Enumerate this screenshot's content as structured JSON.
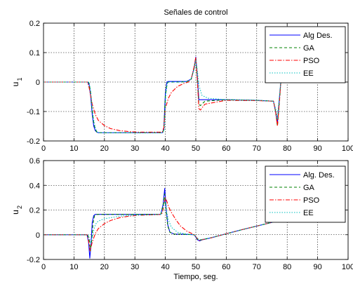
{
  "chart_data": [
    {
      "type": "line",
      "title": "Señales de control",
      "xlabel": "",
      "ylabel_main": "u",
      "ylabel_sub": "1",
      "xlim": [
        0,
        100
      ],
      "ylim": [
        -0.2,
        0.2
      ],
      "xticks": [
        "0",
        "10",
        "20",
        "30",
        "40",
        "50",
        "60",
        "70",
        "80",
        "90",
        "100"
      ],
      "yticks": [
        {
          "v": -0.2,
          "label": "-0.2"
        },
        {
          "v": -0.1,
          "label": "-0.1"
        },
        {
          "v": 0,
          "label": "0"
        },
        {
          "v": 0.1,
          "label": "0.1"
        },
        {
          "v": 0.2,
          "label": "0.2"
        }
      ],
      "grid": true,
      "legend_position": "top-right",
      "series": [
        {
          "name": "Alg Des.",
          "color": "#0000ff",
          "dash": "",
          "x": [
            0,
            14.5,
            15,
            15.5,
            16,
            16.5,
            17,
            17.5,
            18,
            20,
            30,
            39,
            39.5,
            40,
            40.5,
            41,
            42,
            44,
            47,
            48.5,
            49.5,
            50,
            50.5,
            51,
            52,
            54,
            60,
            70,
            75.5,
            76.2,
            76.8,
            77.5,
            78
          ],
          "y": [
            0,
            0,
            -0.01,
            -0.05,
            -0.11,
            -0.15,
            -0.165,
            -0.17,
            -0.172,
            -0.172,
            -0.172,
            -0.172,
            -0.16,
            -0.04,
            0,
            0.002,
            0.002,
            0.002,
            0.002,
            0.01,
            0.05,
            0.085,
            0.02,
            -0.06,
            -0.06,
            -0.06,
            -0.06,
            -0.062,
            -0.065,
            -0.1,
            -0.14,
            -0.05,
            0.012
          ]
        },
        {
          "name": "GA",
          "color": "#008000",
          "dash": "4,3",
          "x": [
            0,
            14.7,
            15,
            15.5,
            16,
            16.5,
            17,
            17.5,
            18,
            20,
            30,
            39,
            39.5,
            40,
            40.5,
            41,
            42,
            44,
            47,
            48.5,
            49.5,
            50,
            50.5,
            51,
            51.5,
            53,
            60,
            70,
            75.5,
            76.2,
            76.8,
            77.5,
            78
          ],
          "y": [
            0,
            0,
            -0.005,
            -0.04,
            -0.1,
            -0.14,
            -0.16,
            -0.17,
            -0.172,
            -0.172,
            -0.172,
            -0.172,
            -0.162,
            -0.05,
            -0.005,
            0,
            0,
            0,
            0.001,
            0.01,
            0.05,
            0.08,
            0.01,
            -0.075,
            -0.08,
            -0.065,
            -0.06,
            -0.062,
            -0.065,
            -0.1,
            -0.15,
            -0.06,
            0.01
          ]
        },
        {
          "name": "PSO",
          "color": "#ff0000",
          "dash": "6,2,1.5,2",
          "x": [
            0,
            14.5,
            15,
            16,
            17,
            18,
            20,
            22,
            25,
            28,
            31,
            34,
            37,
            39,
            39.5,
            40,
            41,
            42,
            44,
            46,
            47.5,
            48.5,
            49.5,
            50,
            50.5,
            51,
            51.5,
            53,
            60,
            70,
            75.5,
            76.2,
            76.8,
            77.5,
            78
          ],
          "y": [
            0,
            0,
            -0.02,
            -0.075,
            -0.11,
            -0.13,
            -0.148,
            -0.158,
            -0.165,
            -0.168,
            -0.17,
            -0.17,
            -0.17,
            -0.17,
            -0.155,
            -0.09,
            -0.055,
            -0.035,
            -0.015,
            -0.005,
            0,
            0.01,
            0.055,
            0.085,
            0.01,
            -0.09,
            -0.095,
            -0.075,
            -0.062,
            -0.063,
            -0.065,
            -0.1,
            -0.15,
            -0.06,
            0.01
          ]
        },
        {
          "name": "EE",
          "color": "#00bfbf",
          "dash": "1.5,2",
          "x": [
            0,
            14.8,
            15,
            15.5,
            16,
            16.5,
            17,
            17.5,
            18,
            20,
            30,
            39.2,
            39.7,
            40.2,
            40.7,
            41,
            42,
            44,
            47,
            48.5,
            49.5,
            50,
            50.5,
            51,
            52,
            54,
            60,
            70,
            75.5,
            76.2,
            76.8,
            77.5,
            78
          ],
          "y": [
            0,
            0,
            -0.004,
            -0.03,
            -0.09,
            -0.13,
            -0.155,
            -0.168,
            -0.172,
            -0.172,
            -0.172,
            -0.172,
            -0.16,
            -0.04,
            -0.003,
            0,
            0,
            0,
            0.001,
            0.01,
            0.045,
            0.075,
            0.04,
            -0.01,
            -0.045,
            -0.055,
            -0.06,
            -0.062,
            -0.065,
            -0.09,
            -0.12,
            -0.04,
            0.01
          ]
        }
      ]
    },
    {
      "type": "line",
      "title": "",
      "xlabel": "Tiempo, seg.",
      "ylabel_main": "u",
      "ylabel_sub": "2",
      "xlim": [
        0,
        100
      ],
      "ylim": [
        -0.2,
        0.6
      ],
      "xticks": [
        "0",
        "10",
        "20",
        "30",
        "40",
        "50",
        "60",
        "70",
        "80",
        "90",
        "100"
      ],
      "yticks": [
        {
          "v": -0.2,
          "label": "-0.2"
        },
        {
          "v": 0,
          "label": "0"
        },
        {
          "v": 0.2,
          "label": "0.2"
        },
        {
          "v": 0.4,
          "label": "0.4"
        },
        {
          "v": 0.6,
          "label": "0.6"
        }
      ],
      "grid": true,
      "legend_position": "top-right",
      "series": [
        {
          "name": "Alg. Des.",
          "color": "#0000ff",
          "dash": "",
          "x": [
            0,
            14.3,
            14.8,
            15.2,
            15.6,
            16,
            16.5,
            17,
            18,
            20,
            25,
            30,
            38.5,
            39.3,
            39.8,
            40.3,
            40.8,
            41.5,
            43,
            46,
            49.5,
            50.5,
            51.2,
            52,
            55,
            60,
            65,
            70,
            75,
            78
          ],
          "y": [
            0,
            0,
            -0.06,
            -0.19,
            -0.08,
            0.1,
            0.155,
            0.165,
            0.165,
            0.165,
            0.165,
            0.165,
            0.165,
            0.25,
            0.375,
            0.2,
            0.08,
            0.02,
            0.005,
            0.004,
            0,
            -0.04,
            -0.05,
            -0.042,
            -0.025,
            0.008,
            0.04,
            0.07,
            0.1,
            0.12
          ]
        },
        {
          "name": "GA",
          "color": "#008000",
          "dash": "4,3",
          "x": [
            0,
            14.5,
            15,
            15.4,
            15.8,
            16.2,
            16.7,
            17.2,
            18,
            20,
            30,
            38.5,
            39.3,
            39.8,
            40.3,
            40.8,
            41.5,
            43,
            46,
            49.5,
            50.5,
            51.2,
            52,
            55,
            60,
            65,
            70,
            75,
            78
          ],
          "y": [
            0,
            0,
            -0.04,
            -0.13,
            -0.05,
            0.08,
            0.15,
            0.163,
            0.165,
            0.165,
            0.165,
            0.165,
            0.24,
            0.33,
            0.18,
            0.07,
            0.02,
            0.005,
            0.004,
            0,
            -0.035,
            -0.045,
            -0.04,
            -0.024,
            0.007,
            0.04,
            0.07,
            0.1,
            0.12
          ]
        },
        {
          "name": "PSO",
          "color": "#ff0000",
          "dash": "6,2,1.5,2",
          "x": [
            0,
            14.3,
            14.8,
            15.3,
            16,
            17,
            18,
            20,
            22,
            25,
            28,
            31,
            34,
            37,
            38.8,
            39.4,
            40,
            40.5,
            41,
            42,
            43.5,
            45,
            47,
            49.5,
            50.5,
            51.2,
            52,
            55,
            60,
            65,
            70,
            75,
            78
          ],
          "y": [
            0,
            0,
            -0.05,
            -0.13,
            -0.06,
            0.01,
            0.05,
            0.09,
            0.115,
            0.138,
            0.15,
            0.157,
            0.16,
            0.162,
            0.165,
            0.22,
            0.3,
            0.27,
            0.23,
            0.18,
            0.12,
            0.07,
            0.03,
            0,
            -0.03,
            -0.045,
            -0.04,
            -0.025,
            0.008,
            0.04,
            0.07,
            0.1,
            0.12
          ]
        },
        {
          "name": "EE",
          "color": "#00bfbf",
          "dash": "1.5,2",
          "x": [
            0,
            14.6,
            15.1,
            15.5,
            16,
            16.5,
            17,
            17.5,
            18,
            20,
            25,
            30,
            35,
            38.5,
            39.3,
            39.8,
            40.3,
            41,
            42,
            44,
            47,
            49.5,
            50.5,
            51.2,
            52,
            55,
            60,
            65,
            70,
            75,
            78
          ],
          "y": [
            0,
            0,
            -0.03,
            -0.07,
            -0.02,
            0.04,
            0.08,
            0.1,
            0.11,
            0.13,
            0.15,
            0.158,
            0.162,
            0.165,
            0.22,
            0.27,
            0.2,
            0.12,
            0.06,
            0.02,
            0.005,
            0,
            -0.03,
            -0.04,
            -0.038,
            -0.024,
            0.007,
            0.04,
            0.07,
            0.1,
            0.12
          ]
        }
      ]
    }
  ]
}
